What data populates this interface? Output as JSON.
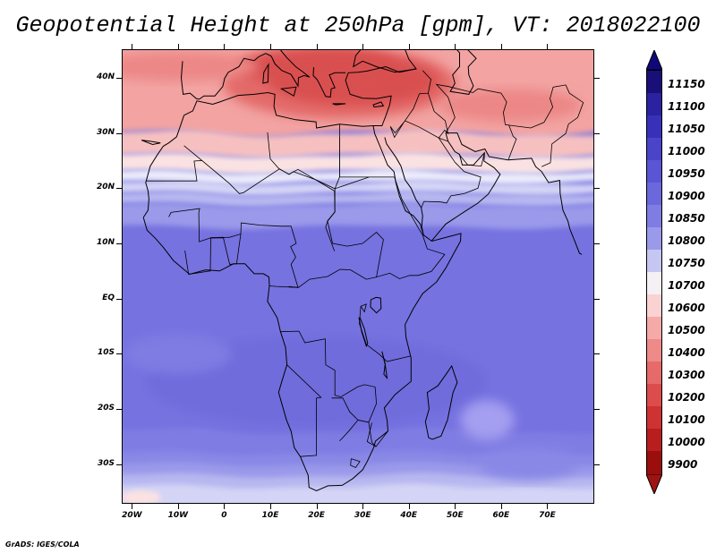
{
  "title": "Geopotential Height at 250hPa [gpm], VT: 2018022100",
  "credit": "GrADS: IGES/COLA",
  "axes": {
    "lat_labels": [
      "40N",
      "30N",
      "20N",
      "10N",
      "EQ",
      "10S",
      "20S",
      "30S"
    ],
    "lat_values": [
      40,
      30,
      20,
      10,
      0,
      -10,
      -20,
      -30
    ],
    "lon_labels": [
      "20W",
      "10W",
      "0",
      "10E",
      "20E",
      "30E",
      "40E",
      "50E",
      "60E",
      "70E"
    ],
    "lon_values": [
      -20,
      -10,
      0,
      10,
      20,
      30,
      40,
      50,
      60,
      70
    ],
    "lat_range": [
      -37,
      45
    ],
    "lon_range": [
      -22,
      80
    ]
  },
  "colorbar": {
    "levels": [
      "11150",
      "11100",
      "11050",
      "11000",
      "10950",
      "10900",
      "10850",
      "10800",
      "10750",
      "10700",
      "10600",
      "10500",
      "10400",
      "10300",
      "10200",
      "10100",
      "10000",
      "9900"
    ],
    "colors": [
      "#1a0f78",
      "#2a22a0",
      "#3830b8",
      "#4a44c8",
      "#5a55d4",
      "#6b68dc",
      "#7f7de3",
      "#9a99ea",
      "#c6c6f3",
      "#f4f0f4",
      "#fbd2d2",
      "#f5aaa8",
      "#ee8a88",
      "#e66a69",
      "#dc4c4c",
      "#cf3232",
      "#b81e1e",
      "#9a0e0e"
    ],
    "top_arrow_color": "#10087a",
    "bottom_arrow_color": "#a01313"
  },
  "map_colors": {
    "band_11150_plus": "#6f6cdc",
    "band_11100": "#7672e0",
    "band_11050": "#7f7de3",
    "band_11000": "#8988e6",
    "band_10950": "#9a99ea",
    "band_10850": "#b7b7f0",
    "band_10800": "#d4d4f6",
    "band_10750": "#ebebfa",
    "band_10700": "#fbe2e2",
    "band_10600": "#f7c0c0",
    "band_10500": "#f2a3a2",
    "band_10400": "#ec8786",
    "band_10300": "#e36a69",
    "band_10200": "#d95050",
    "coastline": "#000000",
    "ocean_swirl": "#a49ff0"
  },
  "chart_data": {
    "type": "heatmap",
    "title": "Geopotential Height at 250hPa [gpm], VT: 2018022100",
    "variable": "Geopotential Height",
    "level": "250hPa",
    "units": "gpm",
    "valid_time": "2018022100",
    "x": "longitude",
    "y": "latitude",
    "xlim": [
      -22,
      80
    ],
    "ylim": [
      -37,
      45
    ],
    "x_ticks": [
      "20W",
      "10W",
      "0",
      "10E",
      "20E",
      "30E",
      "40E",
      "50E",
      "60E",
      "70E"
    ],
    "y_ticks": [
      "40N",
      "30N",
      "20N",
      "10N",
      "EQ",
      "10S",
      "20S",
      "30S"
    ],
    "legend_levels": [
      9900,
      10000,
      10100,
      10200,
      10300,
      10400,
      10500,
      10600,
      10700,
      10750,
      10800,
      10850,
      10900,
      10950,
      11000,
      11050,
      11100,
      11150
    ],
    "zonal_bands": [
      {
        "lat_from": 40,
        "lat_to": 45,
        "value": 10200
      },
      {
        "lat_from": 35,
        "lat_to": 40,
        "value": 10300
      },
      {
        "lat_from": 30,
        "lat_to": 35,
        "value": 10400
      },
      {
        "lat_from": 27,
        "lat_to": 30,
        "value": 10500
      },
      {
        "lat_from": 24,
        "lat_to": 27,
        "value": 10600
      },
      {
        "lat_from": 22,
        "lat_to": 24,
        "value": 10700
      },
      {
        "lat_from": 20,
        "lat_to": 22,
        "value": 10800
      },
      {
        "lat_from": 17,
        "lat_to": 20,
        "value": 10900
      },
      {
        "lat_from": -12,
        "lat_to": 17,
        "value": 10950
      },
      {
        "lat_from": -25,
        "lat_to": -12,
        "value": 10950
      },
      {
        "lat_from": -29,
        "lat_to": -25,
        "value": 10900
      },
      {
        "lat_from": -32,
        "lat_to": -29,
        "value": 10850
      },
      {
        "lat_from": -37,
        "lat_to": -32,
        "value": 10800
      }
    ]
  }
}
